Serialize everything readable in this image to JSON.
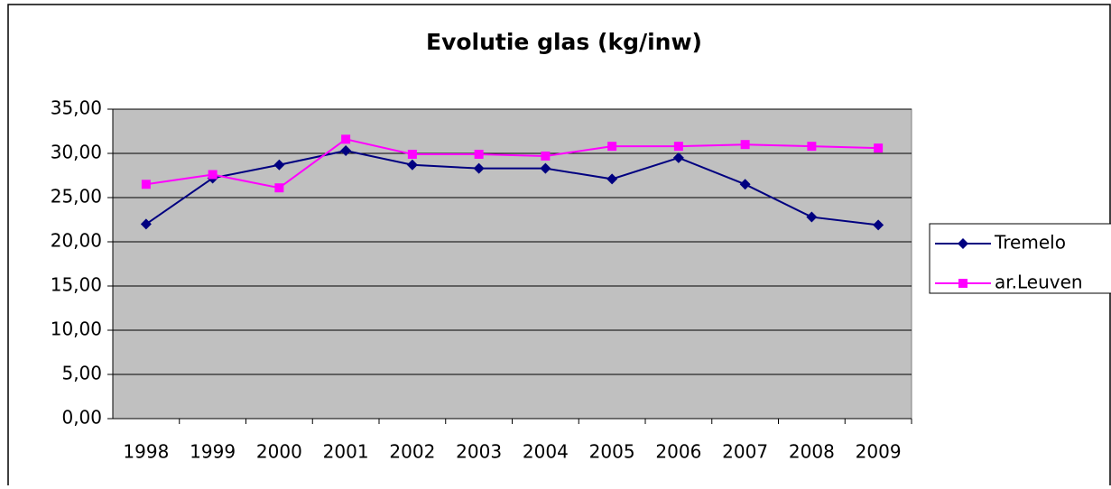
{
  "chart_data": {
    "type": "line",
    "title": "Evolutie glas (kg/inw)",
    "categories": [
      "1998",
      "1999",
      "2000",
      "2001",
      "2002",
      "2003",
      "2004",
      "2005",
      "2006",
      "2007",
      "2008",
      "2009"
    ],
    "series": [
      {
        "name": "Tremelo",
        "color": "#000080",
        "marker": "diamond",
        "values": [
          22.0,
          27.2,
          28.7,
          30.3,
          28.7,
          28.3,
          28.3,
          27.1,
          29.5,
          26.5,
          22.8,
          21.9
        ]
      },
      {
        "name": "ar.Leuven",
        "color": "#ff00ff",
        "marker": "square",
        "values": [
          26.5,
          27.6,
          26.1,
          31.6,
          29.9,
          29.9,
          29.7,
          30.8,
          30.8,
          31.0,
          30.8,
          30.6
        ]
      }
    ],
    "ylim": [
      0,
      35
    ],
    "yticks": [
      {
        "value": 0,
        "label": "0,00"
      },
      {
        "value": 5,
        "label": "5,00"
      },
      {
        "value": 10,
        "label": "10,00"
      },
      {
        "value": 15,
        "label": "15,00"
      },
      {
        "value": 20,
        "label": "20,00"
      },
      {
        "value": 25,
        "label": "25,00"
      },
      {
        "value": 30,
        "label": "30,00"
      },
      {
        "value": 35,
        "label": "35,00"
      }
    ],
    "grid": true,
    "legend": "right"
  }
}
